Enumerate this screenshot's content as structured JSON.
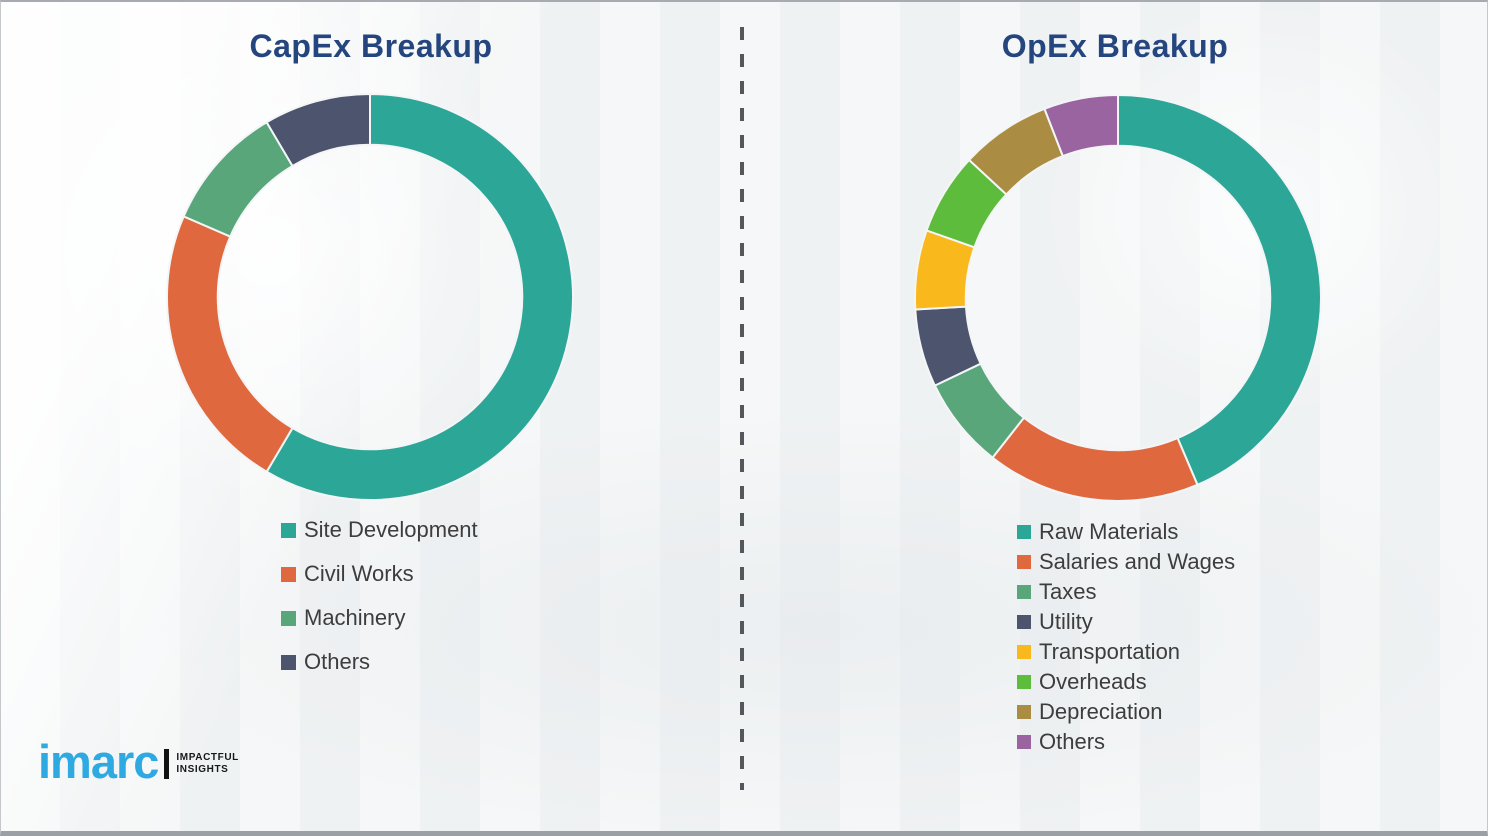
{
  "theme": {
    "title_color": "#24457e",
    "legend_text_color": "#3d3d3d",
    "divider_color": "#54575c",
    "background_color": "#f2f4f5",
    "segment_gap_color": "#f4f5f7"
  },
  "logo": {
    "brand": "imarc",
    "brand_color": "#2fa9e1",
    "tagline_line1": "IMPACTFUL",
    "tagline_line2": "INSIGHTS"
  },
  "chart_data": [
    {
      "type": "pie",
      "subtype": "donut",
      "title": "CapEx Breakup",
      "categories": [
        "Site Development",
        "Civil Works",
        "Machinery",
        "Others"
      ],
      "values": [
        58.5,
        23,
        10,
        8.5
      ],
      "unit": "percent",
      "colors": [
        "#2ca797",
        "#e0683e",
        "#59a67a",
        "#4d546e"
      ],
      "start_angle_deg": 0,
      "direction": "clockwise",
      "inner_radius_ratio": 0.75,
      "legend_position": "below-left",
      "data_labels": false
    },
    {
      "type": "pie",
      "subtype": "donut",
      "title": "OpEx Breakup",
      "categories": [
        "Raw Materials",
        "Salaries and Wages",
        "Taxes",
        "Utility",
        "Transportation",
        "Overheads",
        "Depreciation",
        "Others"
      ],
      "values": [
        43.6,
        17,
        7.3,
        6.2,
        6.3,
        6.5,
        7.2,
        5.9
      ],
      "unit": "percent",
      "colors": [
        "#2ca797",
        "#e0683e",
        "#59a67a",
        "#4d546e",
        "#f9b91c",
        "#5ebc3c",
        "#aa8d42",
        "#9a64a0"
      ],
      "start_angle_deg": 0,
      "direction": "clockwise",
      "inner_radius_ratio": 0.75,
      "legend_position": "below-left",
      "data_labels": false
    }
  ]
}
